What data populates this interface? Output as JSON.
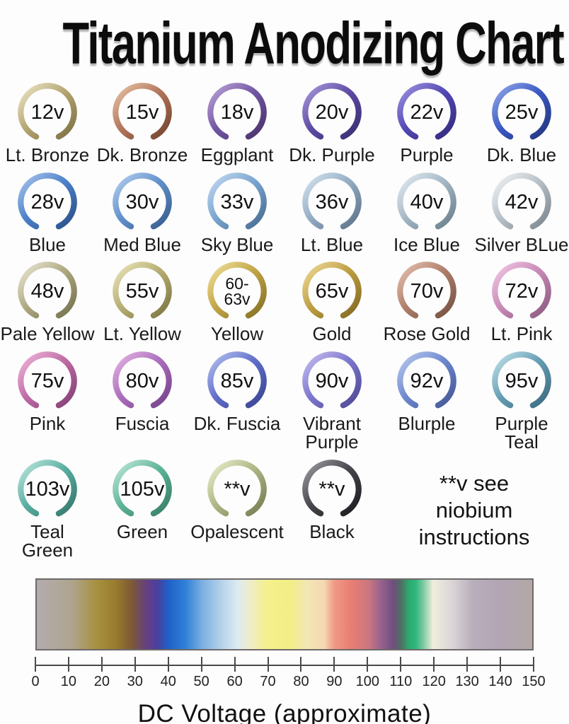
{
  "title": "Titanium Anodizing Chart",
  "note": {
    "lines": [
      "**v see",
      "niobium",
      "instructions"
    ]
  },
  "rows": [
    {
      "rings": [
        {
          "voltage": "12v",
          "name": "Lt. Bronze",
          "light": "#ece5c6",
          "mid": "#b3a470",
          "dark": "#7c6f42"
        },
        {
          "voltage": "15v",
          "name": "Dk. Bronze",
          "light": "#e8c4a6",
          "mid": "#b1755a",
          "dark": "#70432c"
        },
        {
          "voltage": "18v",
          "name": "Eggplant",
          "light": "#bba4d8",
          "mid": "#7056a2",
          "dark": "#483268"
        },
        {
          "voltage": "20v",
          "name": "Dk. Purple",
          "light": "#a99adb",
          "mid": "#5d4aa4",
          "dark": "#392e6e"
        },
        {
          "voltage": "22v",
          "name": "Purple",
          "light": "#9e93de",
          "mid": "#5247b4",
          "dark": "#332b7c"
        },
        {
          "voltage": "25v",
          "name": "Dk. Blue",
          "light": "#92a8ea",
          "mid": "#3a58c2",
          "dark": "#22357c"
        }
      ]
    },
    {
      "rings": [
        {
          "voltage": "28v",
          "name": "Blue",
          "light": "#aac6ec",
          "mid": "#4b7fc9",
          "dark": "#2a4e86"
        },
        {
          "voltage": "30v",
          "name": "Med Blue",
          "light": "#b6cfef",
          "mid": "#6090ca",
          "dark": "#375a8c"
        },
        {
          "voltage": "33v",
          "name": "Sky Blue",
          "light": "#c4daf1",
          "mid": "#78a4ce",
          "dark": "#476a90"
        },
        {
          "voltage": "36v",
          "name": "Lt. Blue",
          "light": "#d6e4f0",
          "mid": "#92abc2",
          "dark": "#5b7187"
        },
        {
          "voltage": "40v",
          "name": "Ice Blue",
          "light": "#e4ecf2",
          "mid": "#a2b6c4",
          "dark": "#697d8a"
        },
        {
          "voltage": "42v",
          "name": "Silver BLue",
          "light": "#f0f3f5",
          "mid": "#b7c0c7",
          "dark": "#7b858d"
        }
      ]
    },
    {
      "rings": [
        {
          "voltage": "48v",
          "name": "Pale Yellow",
          "light": "#eae8d6",
          "mid": "#aca77f",
          "dark": "#73704c"
        },
        {
          "voltage": "55v",
          "name": "Lt. Yellow",
          "light": "#ebe6bb",
          "mid": "#b5ad72",
          "dark": "#7b7442"
        },
        {
          "voltage": [
            "60-",
            "63v"
          ],
          "name": "Yellow",
          "light": "#f0e19c",
          "mid": "#c1a446",
          "dark": "#827024"
        },
        {
          "voltage": "65v",
          "name": "Gold",
          "light": "#eedb9a",
          "mid": "#bd9d42",
          "dark": "#806822"
        },
        {
          "voltage": "70v",
          "name": "Rose Gold",
          "light": "#e6c1b0",
          "mid": "#ae7e6a",
          "dark": "#745042"
        },
        {
          "voltage": "72v",
          "name": "Lt. Pink",
          "light": "#f2c8e6",
          "mid": "#c78ab6",
          "dark": "#8a587e"
        }
      ]
    },
    {
      "rings": [
        {
          "voltage": "75v",
          "name": "Pink",
          "light": "#f0b6da",
          "mid": "#bd6ba5",
          "dark": "#823e72"
        },
        {
          "voltage": "80v",
          "name": "Fuscia",
          "light": "#e6b4e2",
          "mid": "#aa6dbd",
          "dark": "#734186"
        },
        {
          "voltage": "85v",
          "name": "Dk. Fuscia",
          "light": "#b6c2f0",
          "mid": "#606dc9",
          "dark": "#394390"
        },
        {
          "voltage": "90v",
          "name": [
            "Vibrant",
            "Purple"
          ],
          "light": "#c6beef",
          "mid": "#7b75cd",
          "dark": "#4d4792"
        },
        {
          "voltage": "92v",
          "name": "Blurple",
          "light": "#bacaef",
          "mid": "#6d87cd",
          "dark": "#435593"
        },
        {
          "voltage": "95v",
          "name": [
            "Purple",
            "Teal"
          ],
          "light": "#c2e2ea",
          "mid": "#659db3",
          "dark": "#3c697d"
        }
      ]
    },
    {
      "rings": [
        {
          "voltage": "103v",
          "name": [
            "Teal",
            "Green"
          ],
          "light": "#bee8de",
          "mid": "#58ada0",
          "dark": "#34776a"
        },
        {
          "voltage": "105v",
          "name": "Green",
          "light": "#c0e9d8",
          "mid": "#5db396",
          "dark": "#367d62"
        },
        {
          "voltage": "**v",
          "name": "Opalescent",
          "light": "#eaeecb",
          "mid": "#acb584",
          "dark": "#737c51"
        },
        {
          "voltage": "**v",
          "name": "Black",
          "light": "#9c9ca2",
          "mid": "#45454b",
          "dark": "#1b1b1f"
        }
      ]
    }
  ],
  "axis": {
    "label": "DC Voltage (approximate)",
    "min": 0,
    "max": 150,
    "step": 10,
    "ticks": [
      "0",
      "10",
      "20",
      "30",
      "40",
      "50",
      "60",
      "70",
      "80",
      "90",
      "100",
      "110",
      "120",
      "130",
      "140",
      "150"
    ]
  },
  "gradient": {
    "stops": [
      [
        "0%",
        "#b3acae"
      ],
      [
        "7%",
        "#afa490"
      ],
      [
        "12%",
        "#a7913f"
      ],
      [
        "16%",
        "#997b2e"
      ],
      [
        "19%",
        "#7f5b33"
      ],
      [
        "21.5%",
        "#6b4471"
      ],
      [
        "23%",
        "#5e3d92"
      ],
      [
        "24.5%",
        "#46419e"
      ],
      [
        "26.5%",
        "#2060c8"
      ],
      [
        "30%",
        "#2f80d8"
      ],
      [
        "33.5%",
        "#7db0e2"
      ],
      [
        "37%",
        "#b2d0ea"
      ],
      [
        "40.5%",
        "#dceaf2"
      ],
      [
        "43%",
        "#efeccb"
      ],
      [
        "46.5%",
        "#f5f08c"
      ],
      [
        "51%",
        "#f3ee85"
      ],
      [
        "54.5%",
        "#f2e7b3"
      ],
      [
        "58%",
        "#f5d8b2"
      ],
      [
        "60%",
        "#f09a86"
      ],
      [
        "63.5%",
        "#e87e73"
      ],
      [
        "67%",
        "#cb7680"
      ],
      [
        "69.5%",
        "#97628e"
      ],
      [
        "72%",
        "#6f4e7d"
      ],
      [
        "73.5%",
        "#4f6e63"
      ],
      [
        "75%",
        "#2da76e"
      ],
      [
        "76.5%",
        "#2fb77e"
      ],
      [
        "78%",
        "#7cc9a0"
      ],
      [
        "80%",
        "#efeedd"
      ],
      [
        "84%",
        "#dad4d7"
      ],
      [
        "88%",
        "#b8aeba"
      ],
      [
        "93%",
        "#b3a5b5"
      ],
      [
        "97%",
        "#b3a7ae"
      ],
      [
        "100%",
        "#b2a8a5"
      ]
    ]
  },
  "chart_data": {
    "type": "table",
    "title": "Titanium Anodizing Chart",
    "entries": [
      {
        "voltage": "12v",
        "color": "Lt. Bronze"
      },
      {
        "voltage": "15v",
        "color": "Dk. Bronze"
      },
      {
        "voltage": "18v",
        "color": "Eggplant"
      },
      {
        "voltage": "20v",
        "color": "Dk. Purple"
      },
      {
        "voltage": "22v",
        "color": "Purple"
      },
      {
        "voltage": "25v",
        "color": "Dk. Blue"
      },
      {
        "voltage": "28v",
        "color": "Blue"
      },
      {
        "voltage": "30v",
        "color": "Med Blue"
      },
      {
        "voltage": "33v",
        "color": "Sky Blue"
      },
      {
        "voltage": "36v",
        "color": "Lt. Blue"
      },
      {
        "voltage": "40v",
        "color": "Ice Blue"
      },
      {
        "voltage": "42v",
        "color": "Silver BLue"
      },
      {
        "voltage": "48v",
        "color": "Pale Yellow"
      },
      {
        "voltage": "55v",
        "color": "Lt. Yellow"
      },
      {
        "voltage": "60-63v",
        "color": "Yellow"
      },
      {
        "voltage": "65v",
        "color": "Gold"
      },
      {
        "voltage": "70v",
        "color": "Rose Gold"
      },
      {
        "voltage": "72v",
        "color": "Lt. Pink"
      },
      {
        "voltage": "75v",
        "color": "Pink"
      },
      {
        "voltage": "80v",
        "color": "Fuscia"
      },
      {
        "voltage": "85v",
        "color": "Dk. Fuscia"
      },
      {
        "voltage": "90v",
        "color": "Vibrant Purple"
      },
      {
        "voltage": "92v",
        "color": "Blurple"
      },
      {
        "voltage": "95v",
        "color": "Purple Teal"
      },
      {
        "voltage": "103v",
        "color": "Teal Green"
      },
      {
        "voltage": "105v",
        "color": "Green"
      },
      {
        "voltage": "**v",
        "color": "Opalescent"
      },
      {
        "voltage": "**v",
        "color": "Black"
      }
    ],
    "footnote": "**v see niobium instructions",
    "xlabel": "DC Voltage (approximate)",
    "axis_range": [
      0,
      150
    ],
    "tick_interval": 10,
    "legend_position": "none",
    "grid": false
  }
}
